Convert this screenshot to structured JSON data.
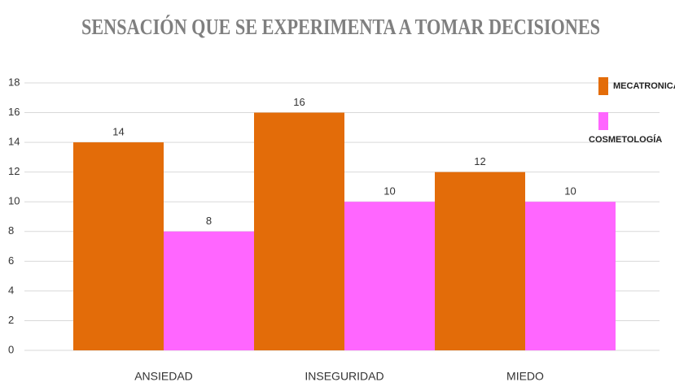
{
  "chart_data": {
    "type": "bar",
    "title": "SENSACIÓN QUE SE EXPERIMENTA A TOMAR DECISIONES",
    "categories": [
      "ANSIEDAD",
      "INSEGURIDAD",
      "MIEDO"
    ],
    "series": [
      {
        "name": "MECATRONICA",
        "color": "#e36c09",
        "values": [
          14,
          16,
          12
        ]
      },
      {
        "name": "COSMETOLOGÍA",
        "color": "#ff66ff",
        "values": [
          8,
          10,
          10
        ]
      }
    ],
    "ylim": [
      0,
      18
    ],
    "yticks": [
      0,
      2,
      4,
      6,
      8,
      10,
      12,
      14,
      16,
      18
    ],
    "grid": true,
    "legend": "right"
  }
}
